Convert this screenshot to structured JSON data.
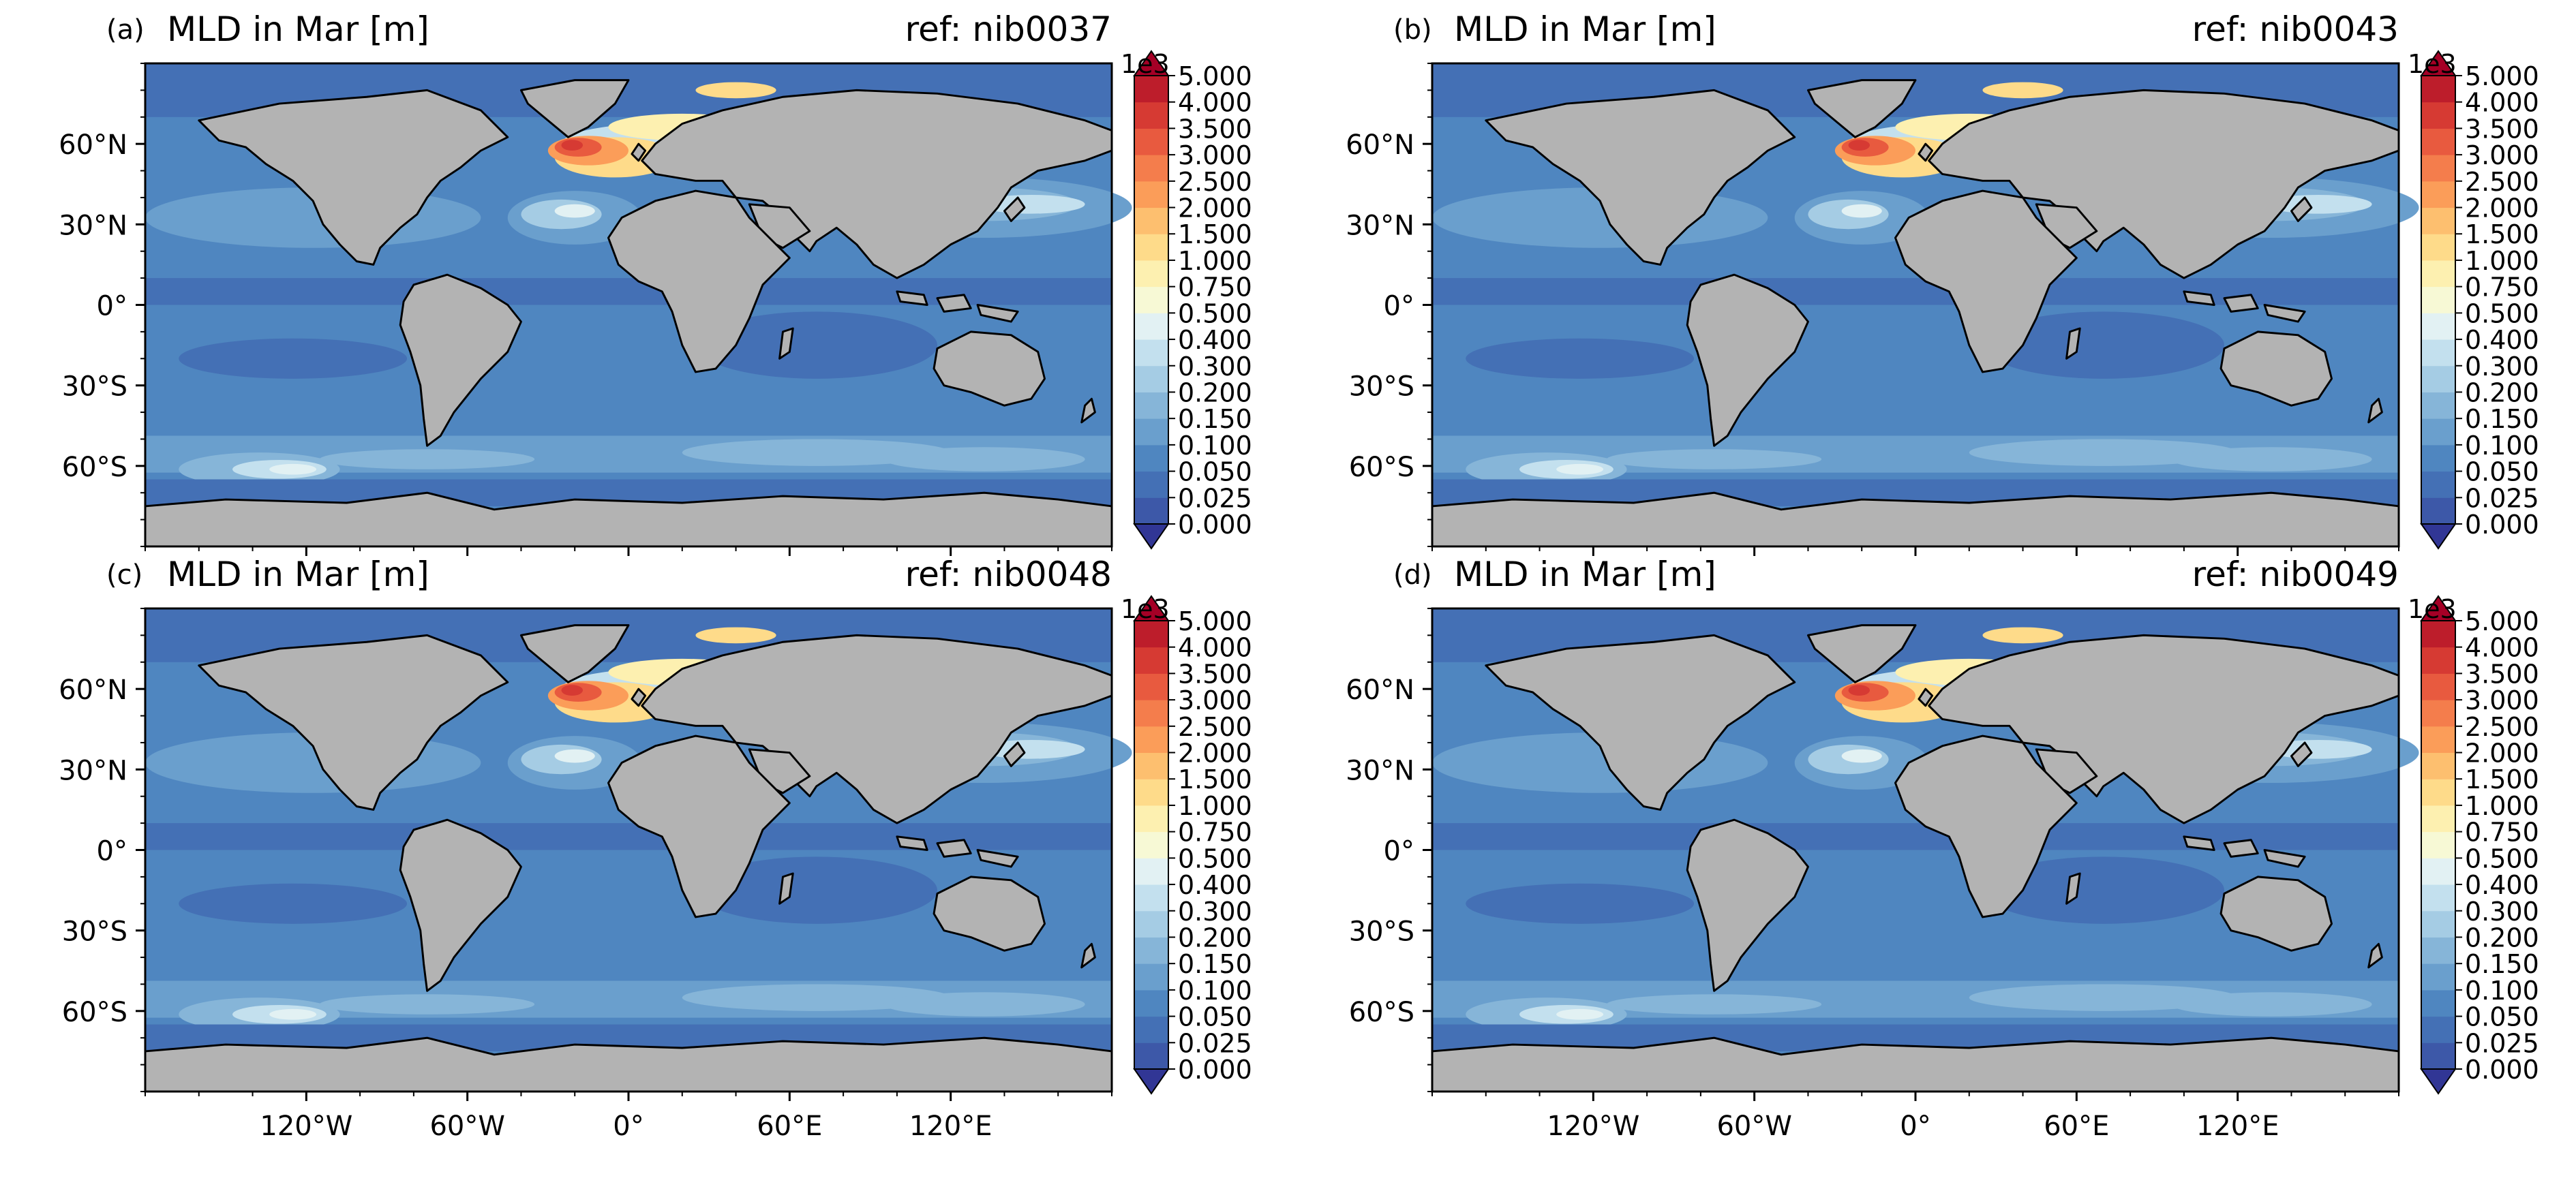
{
  "panels": [
    {
      "id": "a",
      "letter": "(a)",
      "title": "MLD in Mar [m]",
      "ref": "ref: nib0037"
    },
    {
      "id": "b",
      "letter": "(b)",
      "title": "MLD in Mar [m]",
      "ref": "ref: nib0043"
    },
    {
      "id": "c",
      "letter": "(c)",
      "title": "MLD in Mar [m]",
      "ref": "ref: nib0048"
    },
    {
      "id": "d",
      "letter": "(d)",
      "title": "MLD in Mar [m]",
      "ref": "ref: nib0049"
    }
  ],
  "lat_ticks": [
    "60°N",
    "30°N",
    "0°",
    "30°S",
    "60°S"
  ],
  "lon_ticks": [
    "120°W",
    "60°W",
    "0°",
    "60°E",
    "120°E"
  ],
  "colorbar": {
    "multiplier": "1e3",
    "extend": "both",
    "levels": [
      "0.000",
      "0.025",
      "0.050",
      "0.100",
      "0.150",
      "0.200",
      "0.300",
      "0.400",
      "0.500",
      "0.750",
      "1.000",
      "1.500",
      "2.000",
      "2.500",
      "3.000",
      "3.500",
      "4.000",
      "5.000"
    ],
    "colors": [
      "#3d58a8",
      "#4470b5",
      "#4f86c0",
      "#6a9fcd",
      "#86b5d8",
      "#a5cce4",
      "#c3e0ee",
      "#e2f1f3",
      "#f7f9d5",
      "#fdf0b0",
      "#fedb8a",
      "#fdbf6f",
      "#fb9d59",
      "#f47d4c",
      "#e85a3f",
      "#d63a33",
      "#bd1d2b"
    ],
    "under_color": "#313695",
    "over_color": "#a50026"
  },
  "land_color": "#b3b3b3"
}
